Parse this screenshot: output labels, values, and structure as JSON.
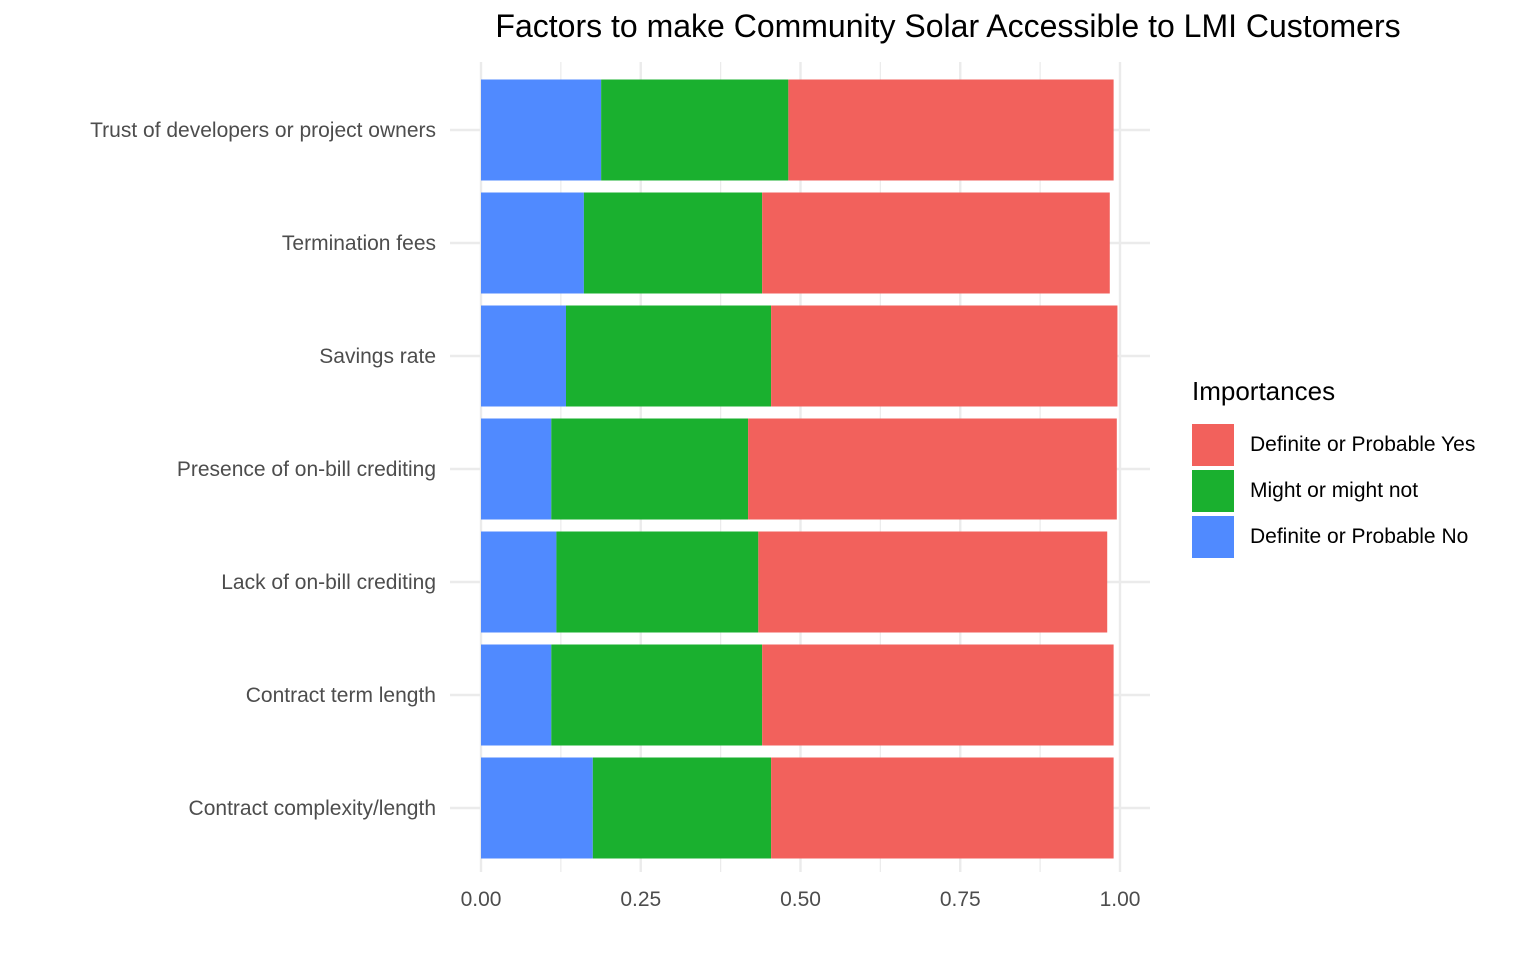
{
  "chart_data": {
    "type": "bar",
    "orientation": "horizontal",
    "stacked": true,
    "title": "Factors to make Community Solar Accessible to LMI Customers",
    "xlabel": "",
    "ylabel": "",
    "xlim": [
      0,
      1
    ],
    "x_ticks": [
      "0.00",
      "0.25",
      "0.50",
      "0.75",
      "1.00"
    ],
    "categories": [
      "Contract complexity/length",
      "Contract term length",
      "Lack of on-bill crediting",
      "Presence of on-bill crediting",
      "Savings rate",
      "Termination fees",
      "Trust of developers or project owners"
    ],
    "series": [
      {
        "name": "Definite or Probable No",
        "color": "#508AFF",
        "values": [
          0.175,
          0.11,
          0.118,
          0.11,
          0.133,
          0.161,
          0.188
        ]
      },
      {
        "name": "Might or might not",
        "color": "#1AB02F",
        "values": [
          0.279,
          0.33,
          0.316,
          0.308,
          0.321,
          0.279,
          0.293
        ]
      },
      {
        "name": "Definite or Probable Yes",
        "color": "#F2615C",
        "values": [
          0.536,
          0.55,
          0.546,
          0.577,
          0.542,
          0.544,
          0.509
        ]
      }
    ],
    "grid": true,
    "legend": {
      "title": "Importances",
      "position": "right",
      "order": [
        "Definite or Probable Yes",
        "Might or might not",
        "Definite or Probable No"
      ]
    }
  }
}
